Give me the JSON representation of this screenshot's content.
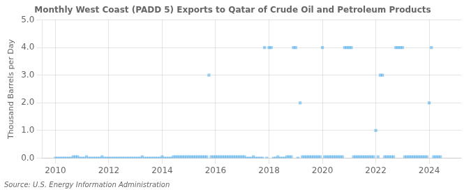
{
  "chart_data": {
    "type": "scatter",
    "title": "Monthly West Coast (PADD 5) Exports to Qatar of Crude Oil and Petroleum Products",
    "ylabel": "Thousand Barrels per Day",
    "source": "Source: U.S. Energy Information Administration",
    "marker": "square",
    "grid": true,
    "xlim": [
      2009.5,
      2025.2
    ],
    "xticks": [
      2010,
      2012,
      2014,
      2016,
      2018,
      2020,
      2022,
      2024
    ],
    "ylim": [
      0,
      5.0
    ],
    "yticks": [
      {
        "value": 0.0,
        "label": "0.0"
      },
      {
        "value": 1.0,
        "label": "1.0"
      },
      {
        "value": 2.0,
        "label": "2.0"
      },
      {
        "value": 3.0,
        "label": "3.0"
      },
      {
        "value": 4.0,
        "label": "4.0"
      },
      {
        "value": 5.0,
        "label": "5.0"
      }
    ],
    "x": [
      2010.0,
      2010.083,
      2010.167,
      2010.25,
      2010.333,
      2010.417,
      2010.5,
      2010.583,
      2010.667,
      2010.75,
      2010.833,
      2010.917,
      2011.0,
      2011.083,
      2011.167,
      2011.25,
      2011.333,
      2011.417,
      2011.5,
      2011.583,
      2011.667,
      2011.75,
      2011.833,
      2011.917,
      2012.0,
      2012.083,
      2012.167,
      2012.25,
      2012.333,
      2012.417,
      2012.5,
      2012.583,
      2012.667,
      2012.75,
      2012.833,
      2012.917,
      2013.0,
      2013.083,
      2013.167,
      2013.25,
      2013.333,
      2013.417,
      2013.5,
      2013.583,
      2013.667,
      2013.75,
      2013.833,
      2013.917,
      2014.0,
      2014.083,
      2014.167,
      2014.25,
      2014.333,
      2014.417,
      2014.5,
      2014.583,
      2014.667,
      2014.75,
      2014.833,
      2014.917,
      2015.0,
      2015.083,
      2015.167,
      2015.25,
      2015.333,
      2015.417,
      2015.5,
      2015.583,
      2015.667,
      2015.75,
      2015.833,
      2015.917,
      2016.0,
      2016.083,
      2016.167,
      2016.25,
      2016.333,
      2016.417,
      2016.5,
      2016.583,
      2016.667,
      2016.75,
      2016.833,
      2016.917,
      2017.0,
      2017.083,
      2017.167,
      2017.25,
      2017.333,
      2017.417,
      2017.5,
      2017.583,
      2017.667,
      2017.75,
      2017.833,
      2017.917,
      2018.0,
      2018.083,
      2018.167,
      2018.25,
      2018.333,
      2018.417,
      2018.5,
      2018.583,
      2018.667,
      2018.75,
      2018.833,
      2018.917,
      2019.0,
      2019.083,
      2019.167,
      2019.25,
      2019.333,
      2019.417,
      2019.5,
      2019.583,
      2019.667,
      2019.75,
      2019.833,
      2019.917,
      2020.0,
      2020.083,
      2020.167,
      2020.25,
      2020.333,
      2020.417,
      2020.5,
      2020.583,
      2020.667,
      2020.75,
      2020.833,
      2020.917,
      2021.0,
      2021.083,
      2021.167,
      2021.25,
      2021.333,
      2021.417,
      2021.5,
      2021.583,
      2021.667,
      2021.75,
      2021.833,
      2021.917,
      2022.0,
      2022.083,
      2022.167,
      2022.25,
      2022.333,
      2022.417,
      2022.5,
      2022.583,
      2022.667,
      2022.75,
      2022.833,
      2022.917,
      2023.0,
      2023.083,
      2023.167,
      2023.25,
      2023.333,
      2023.417,
      2023.5,
      2023.583,
      2023.667,
      2023.75,
      2023.833,
      2023.917,
      2024.0,
      2024.083,
      2024.167,
      2024.25,
      2024.333,
      2024.417
    ],
    "values": [
      0.0,
      0.0,
      0.0,
      0.0,
      0.0,
      0.0,
      0.0,
      0.0,
      0.05,
      0.05,
      0.05,
      0.0,
      0.0,
      0.0,
      0.05,
      0.0,
      0.0,
      0.0,
      0.0,
      0.0,
      0.0,
      0.05,
      0.0,
      0.0,
      0.0,
      0.0,
      0.0,
      0.0,
      0.0,
      0.0,
      0.0,
      0.0,
      0.0,
      0.0,
      0.0,
      0.0,
      0.0,
      0.0,
      0.0,
      0.05,
      0.0,
      0.0,
      0.0,
      0.0,
      0.0,
      0.0,
      0.0,
      0.0,
      0.05,
      0.0,
      0.0,
      0.0,
      0.0,
      0.05,
      0.05,
      0.05,
      0.05,
      0.05,
      0.05,
      0.05,
      0.05,
      0.05,
      0.05,
      0.05,
      0.05,
      0.05,
      0.05,
      0.05,
      0.05,
      3.0,
      0.05,
      0.05,
      0.05,
      0.05,
      0.05,
      0.05,
      0.05,
      0.05,
      0.05,
      0.05,
      0.05,
      0.05,
      0.05,
      0.05,
      0.05,
      0.05,
      0.0,
      0.0,
      0.0,
      0.05,
      0.0,
      0.0,
      0.0,
      0.0,
      4.0,
      0.0,
      4.0,
      4.0,
      0.0,
      0.0,
      0.05,
      0.0,
      0.0,
      0.0,
      0.05,
      0.05,
      0.05,
      4.0,
      4.0,
      0.0,
      2.0,
      0.05,
      0.05,
      0.05,
      0.05,
      0.05,
      0.05,
      0.05,
      0.05,
      0.05,
      4.0,
      0.05,
      0.05,
      0.05,
      0.05,
      0.05,
      0.05,
      0.05,
      0.05,
      0.05,
      4.0,
      4.0,
      4.0,
      4.0,
      0.05,
      0.05,
      0.05,
      0.05,
      0.05,
      0.05,
      0.05,
      0.05,
      0.05,
      0.05,
      1.0,
      0.05,
      3.0,
      3.0,
      0.05,
      0.05,
      0.05,
      0.05,
      0.05,
      4.0,
      4.0,
      4.0,
      4.0,
      0.05,
      0.05,
      0.05,
      0.05,
      0.05,
      0.05,
      0.05,
      0.05,
      0.05,
      0.05,
      0.05,
      2.0,
      4.0,
      0.05,
      0.05,
      0.05,
      0.05
    ]
  }
}
